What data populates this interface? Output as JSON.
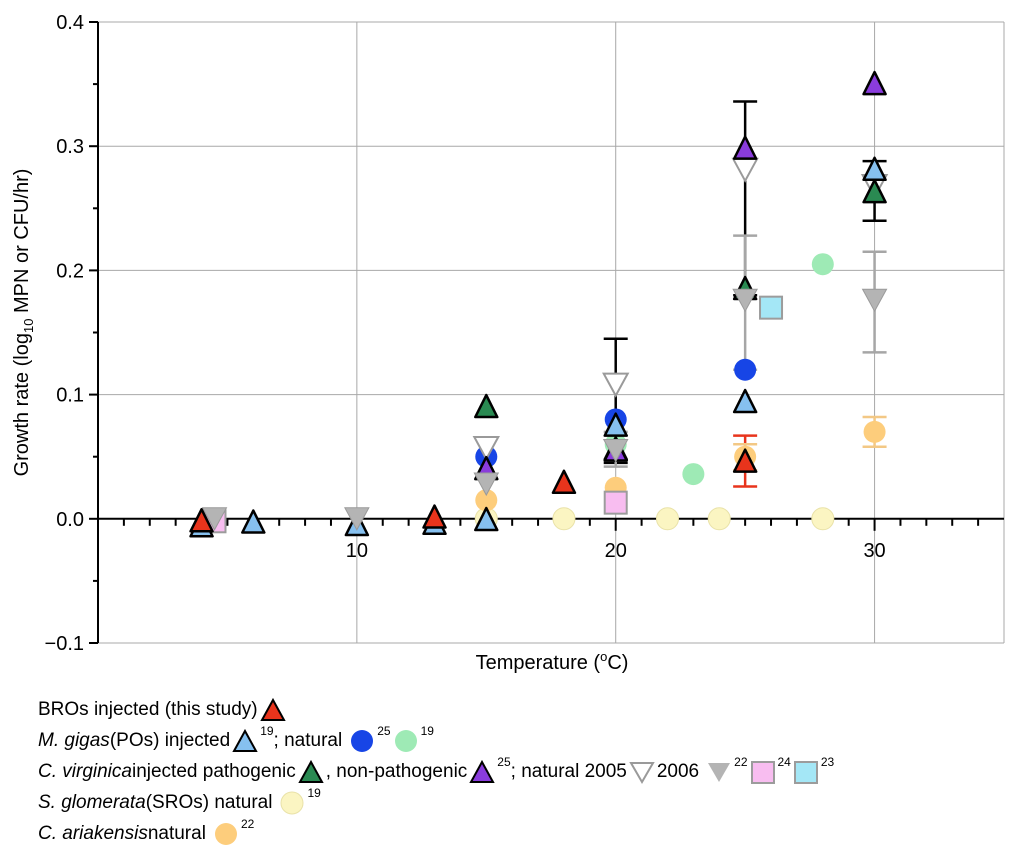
{
  "chart_data": {
    "type": "scatter",
    "xlabel": "Temperature (°C)",
    "ylabel_parts": {
      "pre": "Growth rate (log",
      "sub": "10",
      "post": " MPN or CFU/hr)"
    },
    "xlim": [
      0,
      35
    ],
    "ylim": [
      -0.1,
      0.4
    ],
    "xticks": [
      10,
      20,
      30
    ],
    "yticks": [
      -0.1,
      0.0,
      0.1,
      0.2,
      0.3,
      0.4
    ],
    "ytick_labels": [
      "−0.1",
      "0.0",
      "0.1",
      "0.2",
      "0.3",
      "0.4"
    ],
    "xtick_labels": [
      "10",
      "20",
      "30"
    ],
    "grid": true,
    "series": [
      {
        "id": "bro_injected",
        "marker": "triangle-up",
        "fill": "#e8341c",
        "points": [
          [
            4.0,
            -0.002
          ],
          [
            13.0,
            0.001
          ],
          [
            18.0,
            0.029
          ],
          [
            25.0,
            0.046
          ]
        ],
        "errors": [
          [
            25.0,
            0.046,
            0.026,
            0.067
          ]
        ],
        "err_color": "#e8341c"
      },
      {
        "id": "gigas_injected",
        "marker": "triangle-up",
        "fill": "#86c0ef",
        "points": [
          [
            4.0,
            -0.006
          ],
          [
            6.0,
            -0.003
          ],
          [
            10.0,
            -0.005
          ],
          [
            13.0,
            -0.004
          ],
          [
            15.0,
            -0.001
          ],
          [
            20.0,
            0.075
          ],
          [
            25.0,
            0.094
          ],
          [
            30.0,
            0.281
          ]
        ],
        "errors": [
          [
            30.0,
            0.281,
            0.24,
            0.288
          ]
        ],
        "err_color": "#000000"
      },
      {
        "id": "gigas_natural_25",
        "marker": "circle",
        "fill": "#1745e6",
        "points": [
          [
            15.0,
            0.05
          ],
          [
            20.0,
            0.08
          ],
          [
            25.0,
            0.12
          ]
        ]
      },
      {
        "id": "gigas_natural_19",
        "marker": "circle",
        "fill": "#9eeab5",
        "points": [
          [
            20.0,
            0.06
          ],
          [
            23.0,
            0.036
          ],
          [
            28.0,
            0.205
          ]
        ]
      },
      {
        "id": "virginica_pathogenic",
        "marker": "triangle-up",
        "fill": "#2a8a52",
        "points": [
          [
            15.0,
            0.09
          ],
          [
            20.0,
            0.056
          ],
          [
            25.0,
            0.185
          ],
          [
            30.0,
            0.263
          ]
        ]
      },
      {
        "id": "virginica_nonpathogenic",
        "marker": "triangle-up",
        "fill": "#8a3cdc",
        "points": [
          [
            15.0,
            0.04
          ],
          [
            20.0,
            0.055
          ],
          [
            25.0,
            0.298
          ],
          [
            30.0,
            0.35
          ]
        ],
        "errors": [
          [
            25.0,
            0.298,
            0.18,
            0.336
          ]
        ],
        "err_color": "#000000"
      },
      {
        "id": "virginica_natural_2005",
        "marker": "triangle-down-open",
        "fill": "#ffffff",
        "points": [
          [
            15.0,
            0.057
          ],
          [
            20.0,
            0.108
          ],
          [
            25.0,
            0.281
          ],
          [
            30.0,
            0.268
          ]
        ],
        "errors": [
          [
            20.0,
            0.108,
            0.045,
            0.145
          ]
        ],
        "err_color": "#000000"
      },
      {
        "id": "virginica_natural_2006",
        "marker": "triangle-down",
        "fill": "#b4b4b4",
        "points": [
          [
            4.5,
            0.0
          ],
          [
            10.0,
            0.0
          ],
          [
            15.0,
            0.028
          ],
          [
            20.0,
            0.055
          ],
          [
            25.0,
            0.176
          ],
          [
            30.0,
            0.176
          ]
        ],
        "errors": [
          [
            20.0,
            0.055,
            0.042,
            0.07
          ],
          [
            25.0,
            0.176,
            0.12,
            0.228
          ],
          [
            30.0,
            0.176,
            0.134,
            0.215
          ]
        ],
        "err_color": "#a6a6a6"
      },
      {
        "id": "virginica_24",
        "marker": "square",
        "fill": "#f8bdf0",
        "points": [
          [
            4.5,
            -0.002
          ],
          [
            20.0,
            0.013
          ]
        ]
      },
      {
        "id": "virginica_23",
        "marker": "square",
        "fill": "#a4e7f6",
        "points": [
          [
            26.0,
            0.17
          ]
        ]
      },
      {
        "id": "glomerata_natural",
        "marker": "circle",
        "fill": "#fbf5c2",
        "points": [
          [
            15.0,
            0.0
          ],
          [
            18.0,
            0.0
          ],
          [
            22.0,
            0.0
          ],
          [
            24.0,
            0.0
          ],
          [
            28.0,
            0.0
          ]
        ]
      },
      {
        "id": "ariakensis_natural",
        "marker": "circle",
        "fill": "#fdcd7c",
        "points": [
          [
            15.0,
            0.015
          ],
          [
            20.0,
            0.025
          ],
          [
            25.0,
            0.05
          ],
          [
            30.0,
            0.07
          ]
        ],
        "errors": [
          [
            25.0,
            0.05,
            0.039,
            0.06
          ],
          [
            30.0,
            0.07,
            0.058,
            0.082
          ]
        ],
        "err_color": "#f3c885"
      }
    ]
  },
  "legend": {
    "line1": {
      "text": "BROs injected (this study)"
    },
    "line2": {
      "species": "M. gigas",
      "text_a": " (POs) injected",
      "sup_a": "19",
      "text_b": "; natural",
      "sup_b": "25",
      "sup_c": "19"
    },
    "line3": {
      "species": "C. virginica",
      "text_a": " injected pathogenic",
      "text_b": ", non-pathogenic",
      "sup_b": "25",
      "text_c": "; natural 2005",
      "text_d": "2006",
      "sup_e": "22",
      "sup_f": "24",
      "sup_g": "23"
    },
    "line4": {
      "species": "S. glomerata",
      "text_a": " (SROs) natural",
      "sup_a": "19"
    },
    "line5": {
      "species": "C. ariakensis",
      "text_a": " natural",
      "sup_a": "22"
    }
  }
}
